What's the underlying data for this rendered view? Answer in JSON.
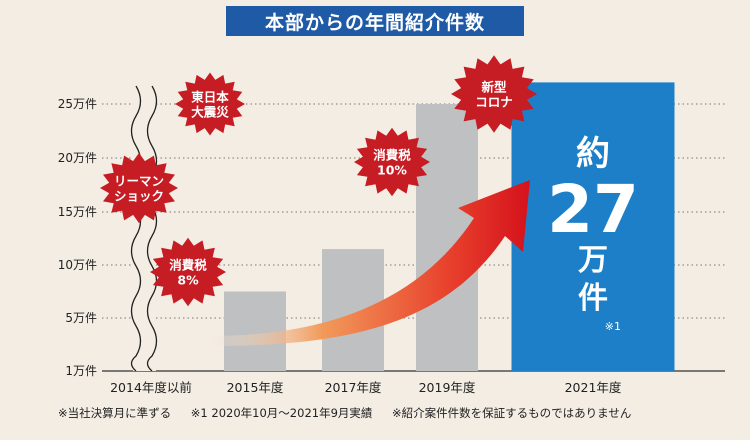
{
  "title": "本部からの年間紹介件数",
  "chart_data": {
    "type": "bar",
    "y_ticks": [
      "1万件",
      "5万件",
      "10万件",
      "15万件",
      "20万件",
      "25万件"
    ],
    "y_tick_values": [
      1,
      5,
      10,
      15,
      20,
      25
    ],
    "ylim": [
      1,
      25
    ],
    "y_unit": "万件",
    "grid": true,
    "categories": [
      "2014年度以前",
      "2015年度",
      "2017年度",
      "2019年度",
      "2021年度"
    ],
    "values": [
      null,
      7.5,
      11.5,
      25,
      27
    ],
    "bar_colors": [
      "#bfc0c1",
      "#bfc0c1",
      "#bfc0c1",
      "#bfc0c1",
      "#1d7fc7"
    ],
    "axis_break": true,
    "highlight": {
      "category": "2021年度",
      "prefix": "約",
      "value": "27",
      "unit_line1": "万",
      "unit_line2": "件",
      "note": "※1"
    },
    "trend_arrow": true,
    "events": [
      {
        "label": [
          "東日本",
          "大震災"
        ],
        "color": "#c61c24"
      },
      {
        "label": [
          "リーマン",
          "ショック"
        ],
        "color": "#c61c24"
      },
      {
        "label": [
          "消費税",
          "8%"
        ],
        "color": "#c61c24"
      },
      {
        "label": [
          "消費税",
          "10%"
        ],
        "color": "#c61c24"
      },
      {
        "label": [
          "新型",
          "コロナ"
        ],
        "color": "#c61c24"
      }
    ]
  },
  "footnotes": [
    "※当社決算月に準ずる",
    "※1 2020年10月〜2021年9月実績",
    "※紹介案件件数を保証するものではありません"
  ]
}
